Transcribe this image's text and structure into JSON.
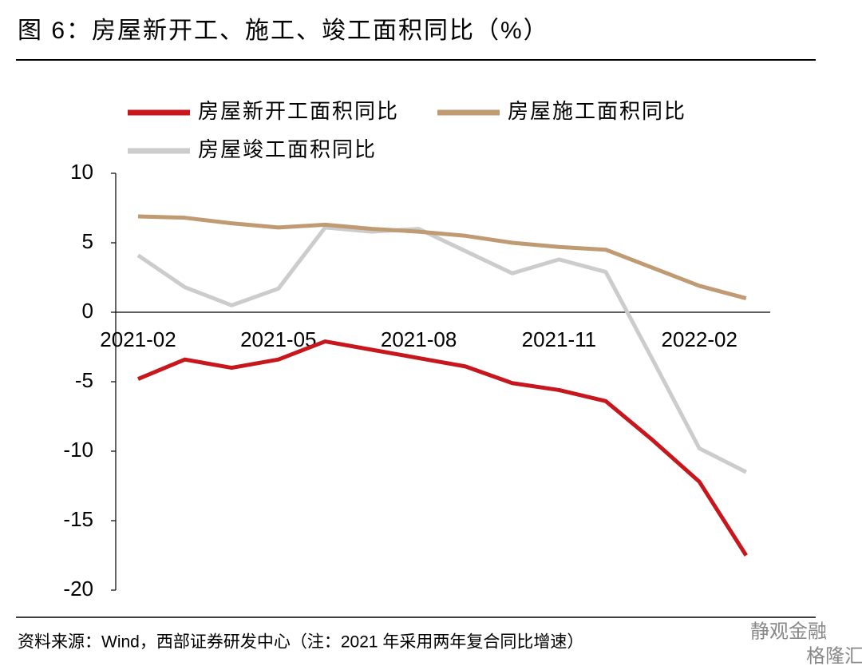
{
  "chart_data": {
    "type": "line",
    "title": "图 6：房屋新开工、施工、竣工面积同比（%）",
    "source": "资料来源：Wind，西部证券研发中心（注：2021 年采用两年复合同比增速）",
    "watermark": [
      "静观金融",
      "格隆汇"
    ],
    "categories": [
      "2021-02",
      null,
      null,
      "2021-05",
      null,
      null,
      "2021-08",
      null,
      null,
      "2021-11",
      null,
      null,
      "2022-02",
      null
    ],
    "series": [
      {
        "name": "房屋新开工面积同比",
        "color": "#c8161d",
        "values": [
          -4.8,
          -3.4,
          -4.0,
          -3.4,
          -2.1,
          -2.7,
          -3.3,
          -3.9,
          -5.1,
          -5.6,
          -6.4,
          -9.2,
          -12.2,
          -17.5
        ]
      },
      {
        "name": "房屋施工面积同比",
        "color": "#c09a73",
        "values": [
          6.9,
          6.8,
          6.4,
          6.1,
          6.3,
          6.0,
          5.8,
          5.5,
          5.0,
          4.7,
          4.5,
          3.2,
          1.9,
          1.0
        ]
      },
      {
        "name": "房屋竣工面积同比",
        "color": "#cccccc",
        "values": [
          4.1,
          1.8,
          0.5,
          1.7,
          6.1,
          5.8,
          6.0,
          4.4,
          2.8,
          3.8,
          2.9,
          -3.4,
          -9.8,
          -11.5
        ]
      }
    ],
    "ylim": [
      -20,
      10
    ],
    "yticks": [
      -20,
      -15,
      -10,
      -5,
      0,
      5,
      10
    ],
    "legend": "top"
  }
}
